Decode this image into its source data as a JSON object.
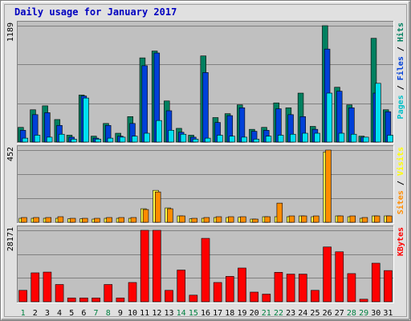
{
  "chart_data": {
    "type": "bar",
    "title": "Daily usage for January 2017",
    "categories": [
      "1",
      "2",
      "3",
      "4",
      "5",
      "6",
      "7",
      "8",
      "9",
      "10",
      "11",
      "12",
      "13",
      "14",
      "15",
      "16",
      "17",
      "18",
      "19",
      "20",
      "21",
      "22",
      "23",
      "24",
      "25",
      "26",
      "27",
      "28",
      "29",
      "30",
      "31"
    ],
    "weekend_days": [
      "1",
      "7",
      "8",
      "14",
      "15",
      "21",
      "22",
      "28",
      "29"
    ],
    "panels": [
      {
        "id": "requests",
        "max_label": "1189",
        "ylim": [
          0,
          1189
        ],
        "legend": [
          {
            "text": "Pages",
            "color": "#00c0c8"
          },
          {
            "text": " / ",
            "color": "#000000"
          },
          {
            "text": "Files",
            "color": "#0040d8"
          },
          {
            "text": " / ",
            "color": "#000000"
          },
          {
            "text": "Hits",
            "color": "#008060"
          }
        ],
        "series": [
          {
            "name": "Hits",
            "color": "#008060",
            "values": [
              150,
              330,
              370,
              230,
              70,
              480,
              60,
              190,
              90,
              260,
              860,
              930,
              420,
              140,
              70,
              880,
              250,
              290,
              380,
              130,
              150,
              400,
              350,
              500,
              160,
              1189,
              560,
              380,
              60,
              1060,
              330
            ]
          },
          {
            "name": "Files",
            "color": "#0040d8",
            "values": [
              120,
              280,
              300,
              170,
              50,
              470,
              40,
              170,
              60,
              190,
              780,
              910,
              320,
              100,
              50,
              710,
              200,
              270,
              350,
              110,
              120,
              340,
              280,
              260,
              130,
              950,
              520,
              350,
              50,
              500,
              310
            ]
          },
          {
            "name": "Pages",
            "color": "#00e0f0",
            "values": [
              40,
              70,
              50,
              80,
              30,
              450,
              30,
              40,
              50,
              60,
              90,
              220,
              120,
              80,
              30,
              40,
              70,
              60,
              50,
              30,
              60,
              70,
              80,
              90,
              90,
              500,
              90,
              80,
              50,
              600,
              70
            ]
          }
        ]
      },
      {
        "id": "visitors",
        "max_label": "452",
        "ylim": [
          0,
          452
        ],
        "legend": [
          {
            "text": "Sites",
            "color": "#ff8c00"
          },
          {
            "text": " / ",
            "color": "#000000"
          },
          {
            "text": "Visits",
            "color": "#ffff00"
          }
        ],
        "series": [
          {
            "name": "Visits",
            "color": "#ffff44",
            "values": [
              25,
              25,
              25,
              25,
              22,
              22,
              20,
              25,
              25,
              25,
              85,
              200,
              90,
              40,
              22,
              25,
              30,
              30,
              32,
              20,
              35,
              35,
              35,
              40,
              35,
              440,
              40,
              35,
              25,
              40,
              40
            ]
          },
          {
            "name": "Sites",
            "color": "#ff8c00",
            "values": [
              30,
              30,
              30,
              35,
              25,
              25,
              25,
              30,
              30,
              30,
              80,
              190,
              85,
              40,
              25,
              30,
              35,
              35,
              35,
              20,
              35,
              120,
              40,
              40,
              40,
              452,
              40,
              40,
              30,
              40,
              40
            ]
          }
        ]
      },
      {
        "id": "kbytes",
        "max_label": "28171",
        "ylim": [
          0,
          28171
        ],
        "legend": [
          {
            "text": "KBytes",
            "color": "#ff0000"
          }
        ],
        "series": [
          {
            "name": "KBytes",
            "color": "#ff0000",
            "values": [
              4500,
              11400,
              11700,
              6800,
              1500,
              1500,
              1500,
              6800,
              1500,
              7600,
              28171,
              28171,
              4500,
              12500,
              2600,
              25000,
              7600,
              10000,
              13300,
              3800,
              3000,
              11600,
              10900,
              10900,
              4500,
              21600,
              19700,
              11100,
              1000,
              15200,
              12300
            ]
          }
        ]
      }
    ]
  }
}
